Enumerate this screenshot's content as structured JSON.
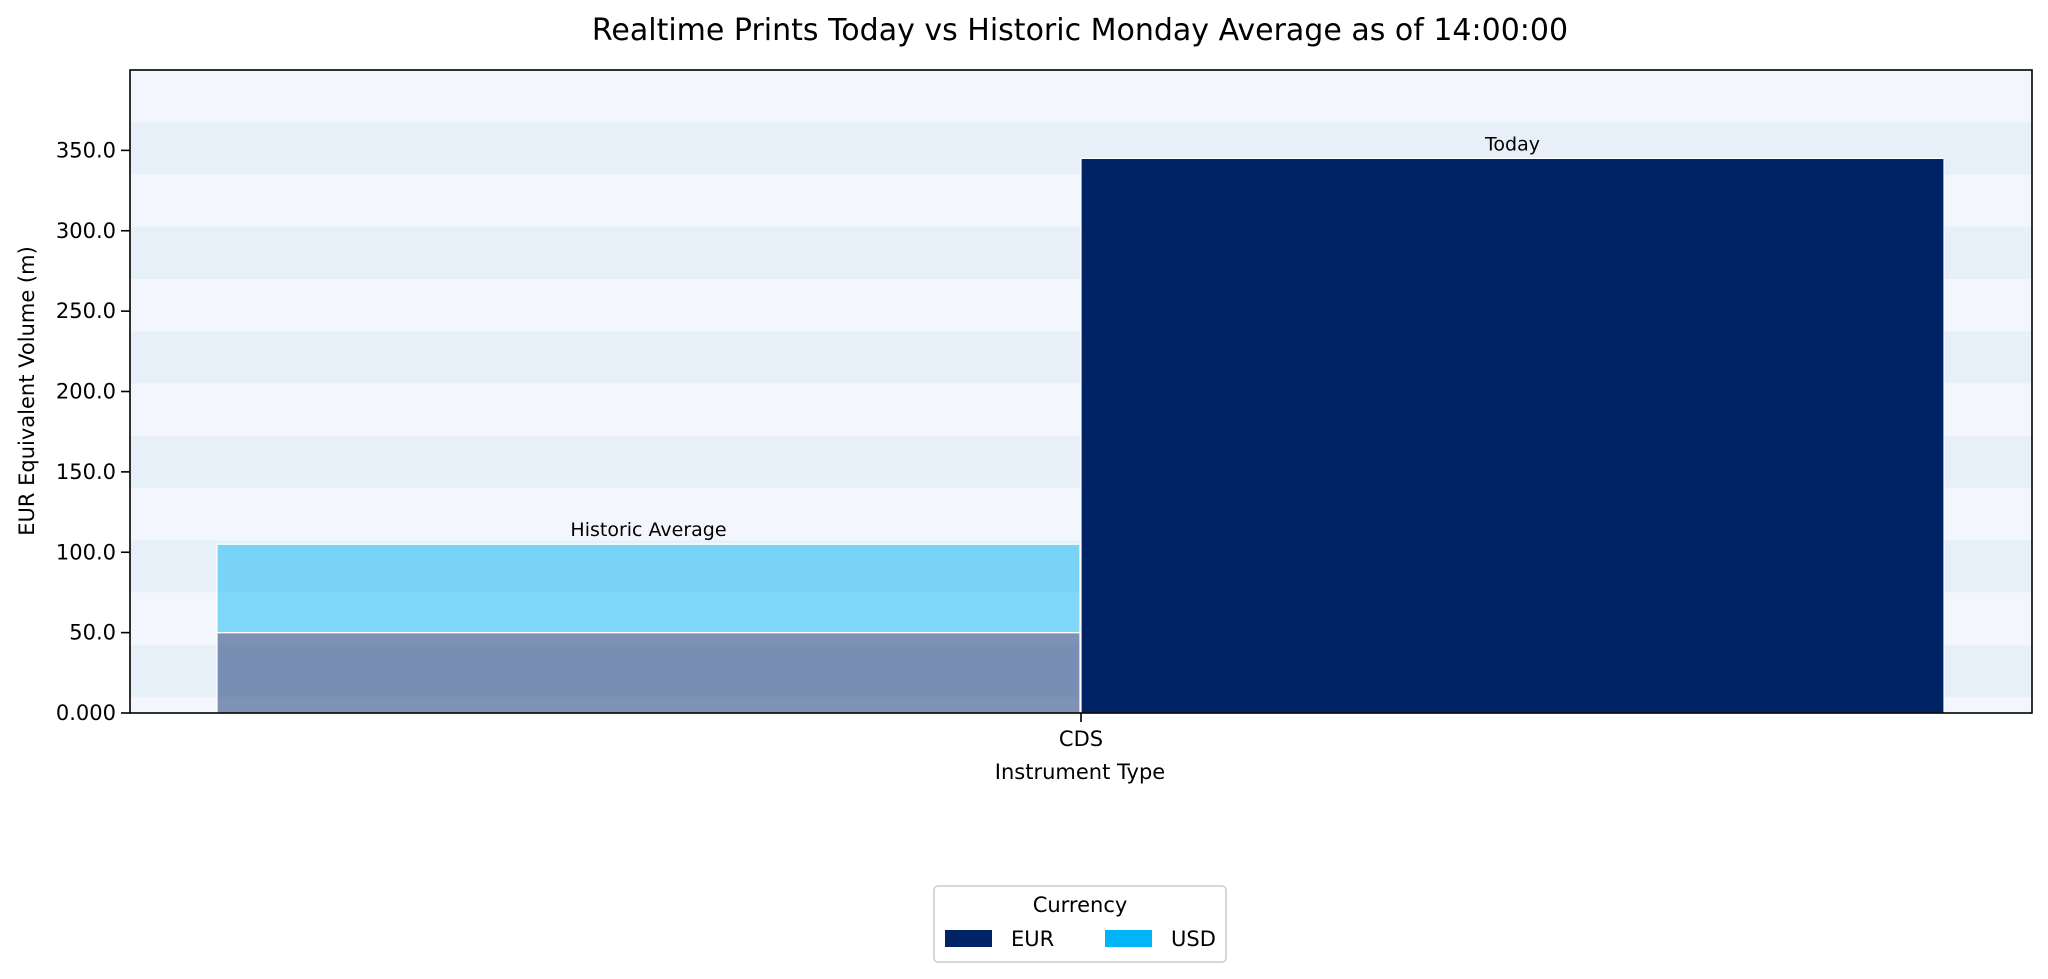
{
  "chart_data": {
    "type": "bar",
    "title": "Realtime Prints Today vs Historic Monday Average as of 14:00:00",
    "xlabel": "Instrument Type",
    "ylabel": "EUR Equivalent Volume (m)",
    "categories": [
      "CDS"
    ],
    "ylim": [
      0,
      400
    ],
    "yticks": [
      0,
      50,
      100,
      150,
      200,
      250,
      300,
      350
    ],
    "ytick_labels": [
      "0.000",
      "50.0",
      "100.0",
      "150.0",
      "200.0",
      "250.0",
      "300.0",
      "350.0"
    ],
    "grid": false,
    "background_bands": true,
    "groups": [
      {
        "label": "Historic Average",
        "stacked": true,
        "faded": true,
        "segments": [
          {
            "series": "EUR",
            "value": 50
          },
          {
            "series": "USD",
            "value": 55
          }
        ]
      },
      {
        "label": "Today",
        "stacked": true,
        "faded": false,
        "segments": [
          {
            "series": "EUR",
            "value": 345
          },
          {
            "series": "USD",
            "value": 0
          }
        ]
      }
    ],
    "series": [
      {
        "name": "EUR",
        "color": "#002366"
      },
      {
        "name": "USD",
        "color": "#00B4F5"
      }
    ],
    "legend": {
      "title": "Currency",
      "placement": "bottom-center",
      "entries": [
        "EUR",
        "USD"
      ]
    },
    "colors": {
      "band_light": "#F3F7FD",
      "band_dark": "#E7EFF8",
      "axis": "#000000"
    }
  }
}
